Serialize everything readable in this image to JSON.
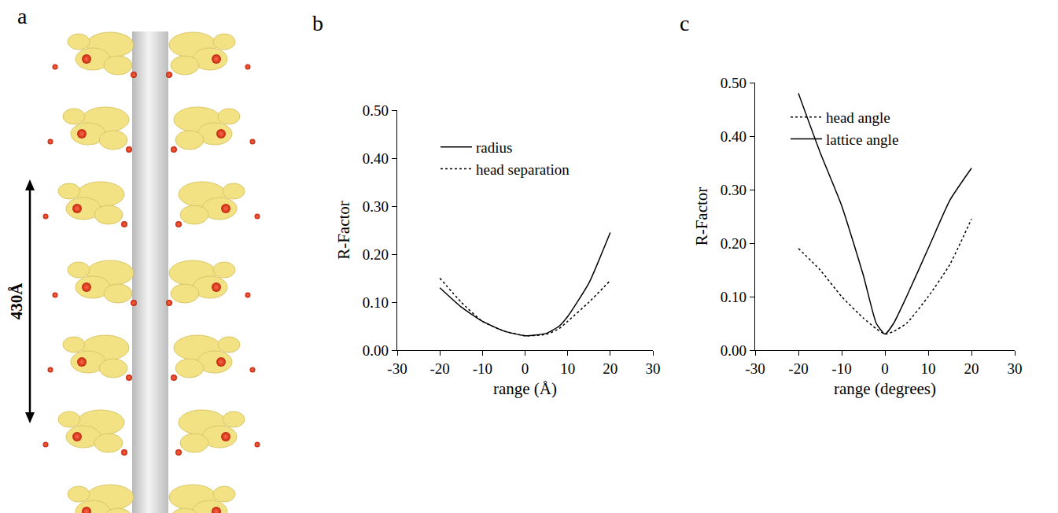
{
  "figure": {
    "panel_a": {
      "label": "a",
      "scale_bar": "430Å"
    }
  },
  "chart_data": [
    {
      "panel_label": "b",
      "type": "line",
      "x_label": "range (Å)",
      "y_label": "R-Factor",
      "x": [
        -20,
        -15,
        -10,
        -5,
        0,
        5,
        8,
        10,
        15,
        20
      ],
      "series": [
        {
          "name": "radius",
          "color": "#000000",
          "line_style": "solid",
          "values": [
            0.13,
            0.09,
            0.06,
            0.04,
            0.03,
            0.035,
            0.05,
            0.07,
            0.14,
            0.245
          ]
        },
        {
          "name": "head separation",
          "color": "#000000",
          "line_style": "dot",
          "values": [
            0.15,
            0.1,
            0.06,
            0.04,
            0.03,
            0.033,
            0.045,
            0.06,
            0.1,
            0.145
          ]
        }
      ],
      "xlim": [
        -30,
        30
      ],
      "xticks": [
        -30,
        -20,
        -10,
        0,
        10,
        20,
        30
      ],
      "ylim": [
        0,
        0.5
      ],
      "yticks": [
        {
          "value": 0,
          "label": "0.00"
        },
        {
          "value": 0.1,
          "label": "0.10"
        },
        {
          "value": 0.2,
          "label": "0.20"
        },
        {
          "value": 0.3,
          "label": "0.30"
        },
        {
          "value": 0.4,
          "label": "0.40"
        },
        {
          "value": 0.5,
          "label": "0.50"
        }
      ],
      "grid": false,
      "legend": "top"
    },
    {
      "panel_label": "c",
      "type": "line",
      "x_label": "range (degrees)",
      "y_label": "R-Factor",
      "x": [
        -20,
        -15,
        -10,
        -5,
        -2,
        0,
        2,
        5,
        10,
        15,
        20
      ],
      "series": [
        {
          "name": "head angle",
          "color": "#000000",
          "line_style": "dot",
          "values": [
            0.19,
            0.15,
            0.1,
            0.06,
            0.04,
            0.03,
            0.035,
            0.05,
            0.1,
            0.16,
            0.245
          ]
        },
        {
          "name": "lattice angle",
          "color": "#000000",
          "line_style": "solid",
          "values": [
            0.48,
            0.37,
            0.27,
            0.14,
            0.05,
            0.03,
            0.05,
            0.1,
            0.19,
            0.28,
            0.34
          ]
        }
      ],
      "xlim": [
        -30,
        30
      ],
      "xticks": [
        -30,
        -20,
        -10,
        0,
        10,
        20,
        30
      ],
      "ylim": [
        0,
        0.5
      ],
      "yticks": [
        {
          "value": 0,
          "label": "0.00"
        },
        {
          "value": 0.1,
          "label": "0.10"
        },
        {
          "value": 0.2,
          "label": "0.20"
        },
        {
          "value": 0.3,
          "label": "0.30"
        },
        {
          "value": 0.4,
          "label": "0.40"
        },
        {
          "value": 0.5,
          "label": "0.50"
        }
      ],
      "grid": false,
      "legend": "top"
    }
  ]
}
